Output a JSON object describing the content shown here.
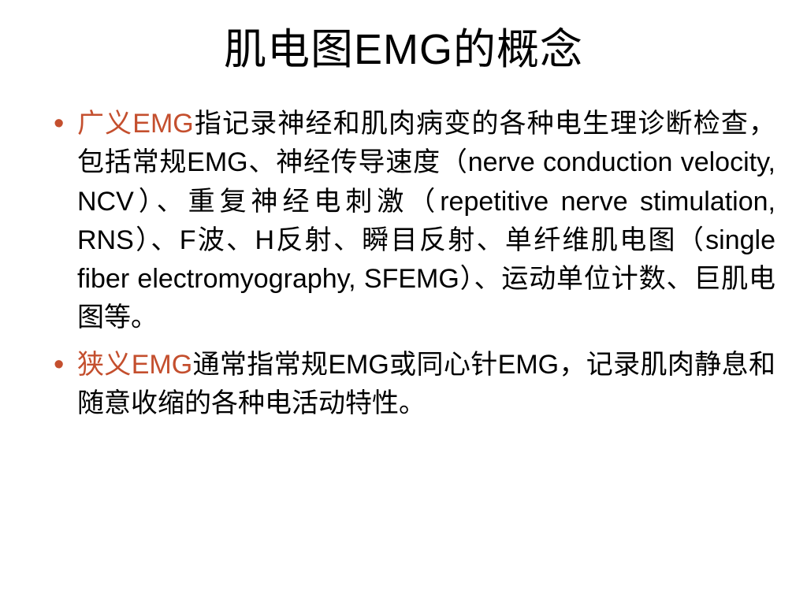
{
  "title": "肌电图EMG的概念",
  "bullets": [
    {
      "emph": "广义EMG",
      "text": "指记录神经和肌肉病变的各种电生理诊断检查，包括常规EMG、神经传导速度（nerve conduction velocity, NCV）、重复神经电刺激（repetitive nerve stimulation, RNS）、F波、H反射、瞬目反射、单纤维肌电图（single fiber electromyography, SFEMG）、运动单位计数、巨肌电图等。"
    },
    {
      "emph": "狭义EMG",
      "text": "通常指常规EMG或同心针EMG，记录肌肉静息和随意收缩的各种电活动特性。"
    }
  ],
  "styling": {
    "background_color": "#ffffff",
    "title_color": "#000000",
    "title_fontsize": 54,
    "body_color": "#000000",
    "body_fontsize": 34,
    "accent_color": "#c44f2e",
    "bullet_color": "#c44f2e",
    "line_height": 1.45
  }
}
